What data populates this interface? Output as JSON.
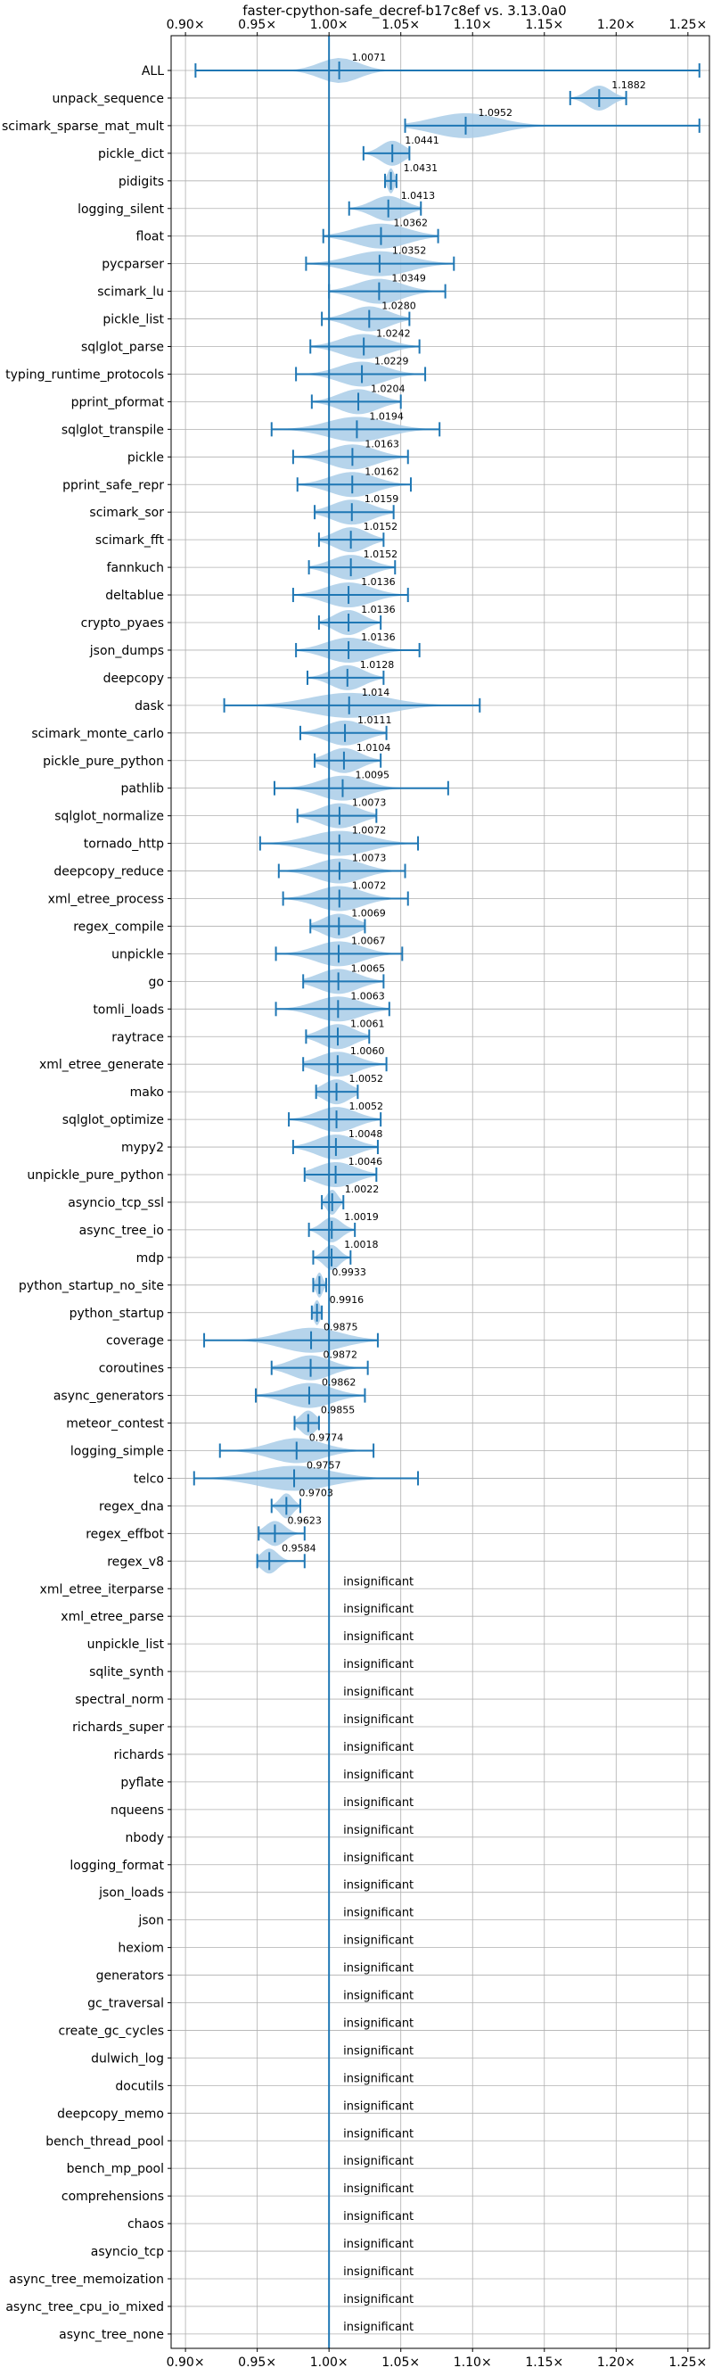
{
  "chart_data": {
    "type": "violin",
    "title": "faster-cpython-safe_decref-b17c8ef vs. 3.13.0a0",
    "xlim": [
      0.89,
      1.265
    ],
    "xticks": [
      "0.90×",
      "0.95×",
      "1.00×",
      "1.05×",
      "1.10×",
      "1.15×",
      "1.20×",
      "1.25×"
    ],
    "xtick_values": [
      0.9,
      0.95,
      1.0,
      1.05,
      1.1,
      1.15,
      1.2,
      1.25
    ],
    "reference_line": 1.0,
    "grid": true,
    "colors": {
      "violin": "#a9cce8",
      "line": "#1f77b4",
      "text": "#000000",
      "grid": "#b0b0b0"
    },
    "insignificant_label": "insignificant",
    "benchmarks": [
      {
        "name": "ALL",
        "ratio": 1.0071,
        "label": "1.0071",
        "min": 0.907,
        "max": 1.258,
        "spread": 0.03
      },
      {
        "name": "unpack_sequence",
        "ratio": 1.1882,
        "label": "1.1882",
        "min": 1.168,
        "max": 1.207,
        "spread": 0.018
      },
      {
        "name": "scimark_sparse_mat_mult",
        "ratio": 1.0952,
        "label": "1.0952",
        "min": 1.053,
        "max": 1.258,
        "spread": 0.05
      },
      {
        "name": "pickle_dict",
        "ratio": 1.0441,
        "label": "1.0441",
        "min": 1.024,
        "max": 1.056,
        "spread": 0.018
      },
      {
        "name": "pidigits",
        "ratio": 1.0431,
        "label": "1.0431",
        "min": 1.039,
        "max": 1.047,
        "spread": 0.005
      },
      {
        "name": "logging_silent",
        "ratio": 1.0413,
        "label": "1.0413",
        "min": 1.014,
        "max": 1.064,
        "spread": 0.025
      },
      {
        "name": "float",
        "ratio": 1.0362,
        "label": "1.0362",
        "min": 0.996,
        "max": 1.076,
        "spread": 0.04
      },
      {
        "name": "pycparser",
        "ratio": 1.0352,
        "label": "1.0352",
        "min": 0.984,
        "max": 1.087,
        "spread": 0.045
      },
      {
        "name": "scimark_lu",
        "ratio": 1.0349,
        "label": "1.0349",
        "min": 1.0,
        "max": 1.081,
        "spread": 0.035
      },
      {
        "name": "pickle_list",
        "ratio": 1.028,
        "label": "1.0280",
        "min": 0.995,
        "max": 1.056,
        "spread": 0.03
      },
      {
        "name": "sqlglot_parse",
        "ratio": 1.0242,
        "label": "1.0242",
        "min": 0.987,
        "max": 1.063,
        "spread": 0.035
      },
      {
        "name": "typing_runtime_protocols",
        "ratio": 1.0229,
        "label": "1.0229",
        "min": 0.977,
        "max": 1.067,
        "spread": 0.035
      },
      {
        "name": "pprint_pformat",
        "ratio": 1.0204,
        "label": "1.0204",
        "min": 0.988,
        "max": 1.05,
        "spread": 0.03
      },
      {
        "name": "sqlglot_transpile",
        "ratio": 1.0194,
        "label": "1.0194",
        "min": 0.96,
        "max": 1.077,
        "spread": 0.045
      },
      {
        "name": "pickle",
        "ratio": 1.0163,
        "label": "1.0163",
        "min": 0.975,
        "max": 1.055,
        "spread": 0.035
      },
      {
        "name": "pprint_safe_repr",
        "ratio": 1.0162,
        "label": "1.0162",
        "min": 0.978,
        "max": 1.057,
        "spread": 0.035
      },
      {
        "name": "scimark_sor",
        "ratio": 1.0159,
        "label": "1.0159",
        "min": 0.99,
        "max": 1.045,
        "spread": 0.03
      },
      {
        "name": "scimark_fft",
        "ratio": 1.0152,
        "label": "1.0152",
        "min": 0.993,
        "max": 1.038,
        "spread": 0.025
      },
      {
        "name": "fannkuch",
        "ratio": 1.0152,
        "label": "1.0152",
        "min": 0.986,
        "max": 1.046,
        "spread": 0.03
      },
      {
        "name": "deltablue",
        "ratio": 1.0136,
        "label": "1.0136",
        "min": 0.975,
        "max": 1.055,
        "spread": 0.035
      },
      {
        "name": "crypto_pyaes",
        "ratio": 1.0136,
        "label": "1.0136",
        "min": 0.993,
        "max": 1.036,
        "spread": 0.022
      },
      {
        "name": "json_dumps",
        "ratio": 1.0136,
        "label": "1.0136",
        "min": 0.977,
        "max": 1.063,
        "spread": 0.035
      },
      {
        "name": "deepcopy",
        "ratio": 1.0128,
        "label": "1.0128",
        "min": 0.985,
        "max": 1.038,
        "spread": 0.025
      },
      {
        "name": "dask",
        "ratio": 1.014,
        "label": "1.014",
        "min": 0.927,
        "max": 1.105,
        "spread": 0.06
      },
      {
        "name": "scimark_monte_carlo",
        "ratio": 1.0111,
        "label": "1.0111",
        "min": 0.98,
        "max": 1.04,
        "spread": 0.03
      },
      {
        "name": "pickle_pure_python",
        "ratio": 1.0104,
        "label": "1.0104",
        "min": 0.99,
        "max": 1.036,
        "spread": 0.025
      },
      {
        "name": "pathlib",
        "ratio": 1.0095,
        "label": "1.0095",
        "min": 0.962,
        "max": 1.083,
        "spread": 0.035
      },
      {
        "name": "sqlglot_normalize",
        "ratio": 1.0073,
        "label": "1.0073",
        "min": 0.978,
        "max": 1.033,
        "spread": 0.03
      },
      {
        "name": "tornado_http",
        "ratio": 1.0072,
        "label": "1.0072",
        "min": 0.952,
        "max": 1.062,
        "spread": 0.045
      },
      {
        "name": "deepcopy_reduce",
        "ratio": 1.0073,
        "label": "1.0073",
        "min": 0.965,
        "max": 1.053,
        "spread": 0.035
      },
      {
        "name": "xml_etree_process",
        "ratio": 1.0072,
        "label": "1.0072",
        "min": 0.968,
        "max": 1.055,
        "spread": 0.035
      },
      {
        "name": "regex_compile",
        "ratio": 1.0069,
        "label": "1.0069",
        "min": 0.987,
        "max": 1.025,
        "spread": 0.025
      },
      {
        "name": "unpickle",
        "ratio": 1.0067,
        "label": "1.0067",
        "min": 0.963,
        "max": 1.051,
        "spread": 0.035
      },
      {
        "name": "go",
        "ratio": 1.0065,
        "label": "1.0065",
        "min": 0.982,
        "max": 1.038,
        "spread": 0.03
      },
      {
        "name": "tomli_loads",
        "ratio": 1.0063,
        "label": "1.0063",
        "min": 0.963,
        "max": 1.042,
        "spread": 0.035
      },
      {
        "name": "raytrace",
        "ratio": 1.0061,
        "label": "1.0061",
        "min": 0.984,
        "max": 1.028,
        "spread": 0.025
      },
      {
        "name": "xml_etree_generate",
        "ratio": 1.006,
        "label": "1.0060",
        "min": 0.982,
        "max": 1.04,
        "spread": 0.03
      },
      {
        "name": "mako",
        "ratio": 1.0052,
        "label": "1.0052",
        "min": 0.991,
        "max": 1.02,
        "spread": 0.02
      },
      {
        "name": "sqlglot_optimize",
        "ratio": 1.0052,
        "label": "1.0052",
        "min": 0.972,
        "max": 1.036,
        "spread": 0.03
      },
      {
        "name": "mypy2",
        "ratio": 1.0048,
        "label": "1.0048",
        "min": 0.975,
        "max": 1.034,
        "spread": 0.03
      },
      {
        "name": "unpickle_pure_python",
        "ratio": 1.0046,
        "label": "1.0046",
        "min": 0.983,
        "max": 1.033,
        "spread": 0.03
      },
      {
        "name": "asyncio_tcp_ssl",
        "ratio": 1.0022,
        "label": "1.0022",
        "min": 0.995,
        "max": 1.01,
        "spread": 0.008
      },
      {
        "name": "async_tree_io",
        "ratio": 1.0019,
        "label": "1.0019",
        "min": 0.986,
        "max": 1.018,
        "spread": 0.015
      },
      {
        "name": "mdp",
        "ratio": 1.0018,
        "label": "1.0018",
        "min": 0.989,
        "max": 1.015,
        "spread": 0.012
      },
      {
        "name": "python_startup_no_site",
        "ratio": 0.9933,
        "label": "0.9933",
        "min": 0.989,
        "max": 0.998,
        "spread": 0.005
      },
      {
        "name": "python_startup",
        "ratio": 0.9916,
        "label": "0.9916",
        "min": 0.988,
        "max": 0.995,
        "spread": 0.005
      },
      {
        "name": "coverage",
        "ratio": 0.9875,
        "label": "0.9875",
        "min": 0.913,
        "max": 1.034,
        "spread": 0.045
      },
      {
        "name": "coroutines",
        "ratio": 0.9872,
        "label": "0.9872",
        "min": 0.96,
        "max": 1.027,
        "spread": 0.03
      },
      {
        "name": "async_generators",
        "ratio": 0.9862,
        "label": "0.9862",
        "min": 0.949,
        "max": 1.025,
        "spread": 0.035
      },
      {
        "name": "meteor_contest",
        "ratio": 0.9855,
        "label": "0.9855",
        "min": 0.976,
        "max": 0.993,
        "spread": 0.012
      },
      {
        "name": "logging_simple",
        "ratio": 0.9774,
        "label": "0.9774",
        "min": 0.924,
        "max": 1.031,
        "spread": 0.04
      },
      {
        "name": "telco",
        "ratio": 0.9757,
        "label": "0.9757",
        "min": 0.906,
        "max": 1.062,
        "spread": 0.055
      },
      {
        "name": "regex_dna",
        "ratio": 0.9703,
        "label": "0.9703",
        "min": 0.96,
        "max": 0.98,
        "spread": 0.01
      },
      {
        "name": "regex_effbot",
        "ratio": 0.9623,
        "label": "0.9623",
        "min": 0.951,
        "max": 0.983,
        "spread": 0.015
      },
      {
        "name": "regex_v8",
        "ratio": 0.9584,
        "label": "0.9584",
        "min": 0.95,
        "max": 0.983,
        "spread": 0.013
      },
      {
        "name": "xml_etree_iterparse",
        "insignificant": true
      },
      {
        "name": "xml_etree_parse",
        "insignificant": true
      },
      {
        "name": "unpickle_list",
        "insignificant": true
      },
      {
        "name": "sqlite_synth",
        "insignificant": true
      },
      {
        "name": "spectral_norm",
        "insignificant": true
      },
      {
        "name": "richards_super",
        "insignificant": true
      },
      {
        "name": "richards",
        "insignificant": true
      },
      {
        "name": "pyflate",
        "insignificant": true
      },
      {
        "name": "nqueens",
        "insignificant": true
      },
      {
        "name": "nbody",
        "insignificant": true
      },
      {
        "name": "logging_format",
        "insignificant": true
      },
      {
        "name": "json_loads",
        "insignificant": true
      },
      {
        "name": "json",
        "insignificant": true
      },
      {
        "name": "hexiom",
        "insignificant": true
      },
      {
        "name": "generators",
        "insignificant": true
      },
      {
        "name": "gc_traversal",
        "insignificant": true
      },
      {
        "name": "create_gc_cycles",
        "insignificant": true
      },
      {
        "name": "dulwich_log",
        "insignificant": true
      },
      {
        "name": "docutils",
        "insignificant": true
      },
      {
        "name": "deepcopy_memo",
        "insignificant": true
      },
      {
        "name": "bench_thread_pool",
        "insignificant": true
      },
      {
        "name": "bench_mp_pool",
        "insignificant": true
      },
      {
        "name": "comprehensions",
        "insignificant": true
      },
      {
        "name": "chaos",
        "insignificant": true
      },
      {
        "name": "asyncio_tcp",
        "insignificant": true
      },
      {
        "name": "async_tree_memoization",
        "insignificant": true
      },
      {
        "name": "async_tree_cpu_io_mixed",
        "insignificant": true
      },
      {
        "name": "async_tree_none",
        "insignificant": true
      }
    ]
  }
}
